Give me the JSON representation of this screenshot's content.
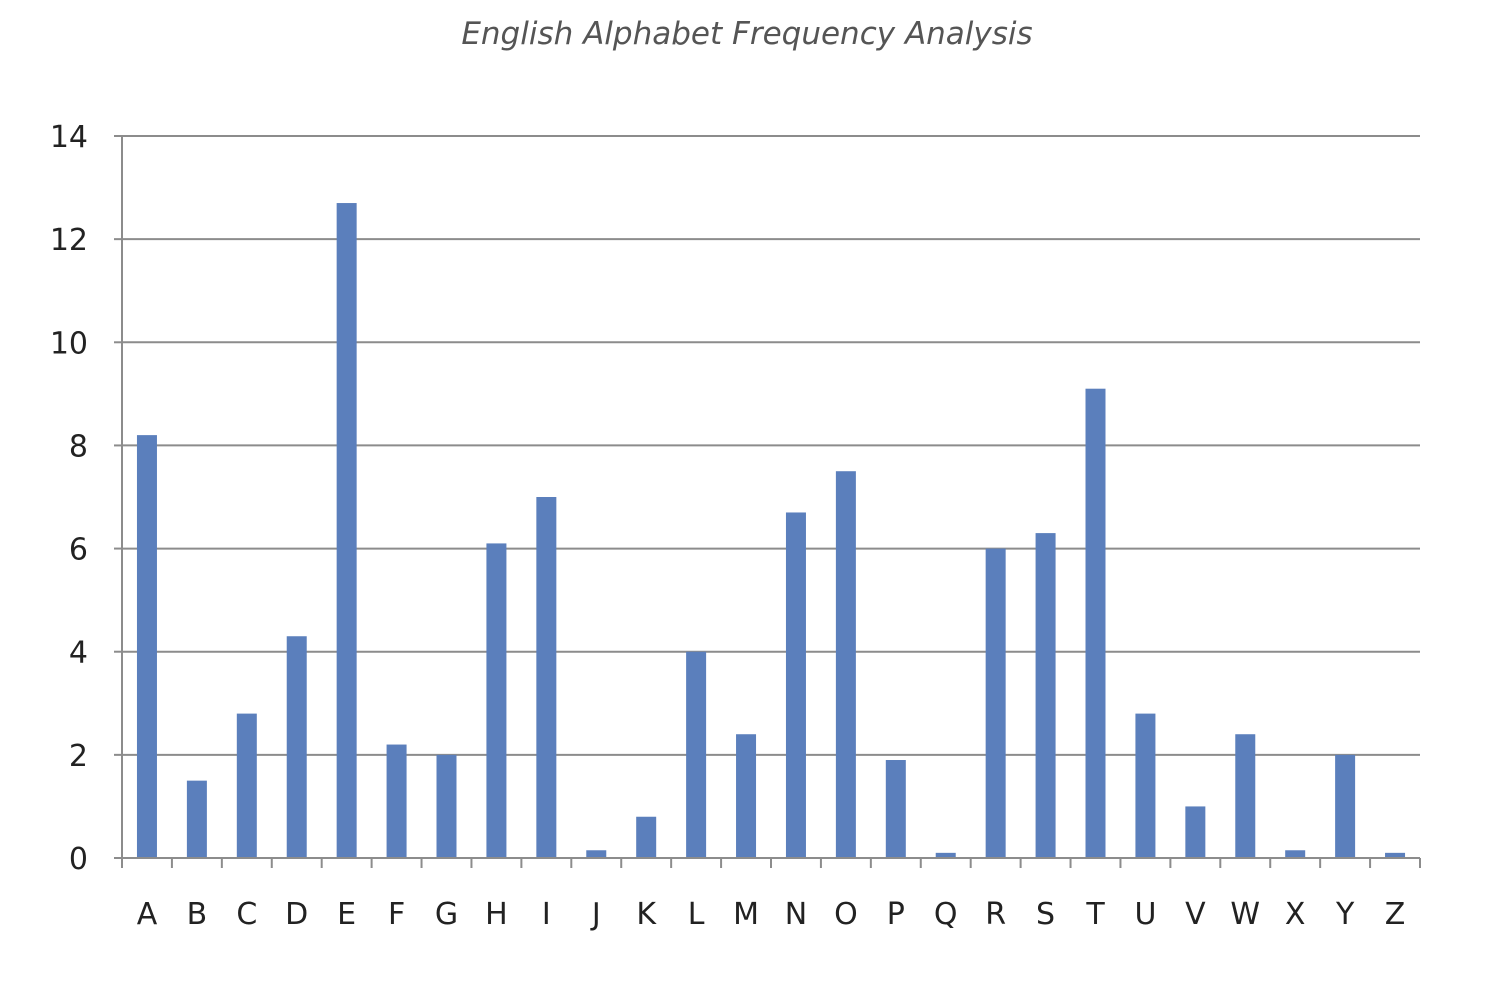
{
  "chart_data": {
    "type": "bar",
    "title": "English Alphabet Frequency Analysis",
    "xlabel": "",
    "ylabel": "",
    "categories": [
      "A",
      "B",
      "C",
      "D",
      "E",
      "F",
      "G",
      "H",
      "I",
      "J",
      "K",
      "L",
      "M",
      "N",
      "O",
      "P",
      "Q",
      "R",
      "S",
      "T",
      "U",
      "V",
      "W",
      "X",
      "Y",
      "Z"
    ],
    "values": [
      8.2,
      1.5,
      2.8,
      4.3,
      12.7,
      2.2,
      2.0,
      6.1,
      7.0,
      0.15,
      0.8,
      4.0,
      2.4,
      6.7,
      7.5,
      1.9,
      0.1,
      6.0,
      6.3,
      9.1,
      2.8,
      1.0,
      2.4,
      0.15,
      2.0,
      0.1
    ],
    "ylim": [
      0,
      14
    ],
    "yticks": [
      0,
      2,
      4,
      6,
      8,
      10,
      12,
      14
    ],
    "grid": true,
    "legend": "none",
    "bar_color": "#5b7fbc",
    "grid_color": "#8c8c8c"
  }
}
